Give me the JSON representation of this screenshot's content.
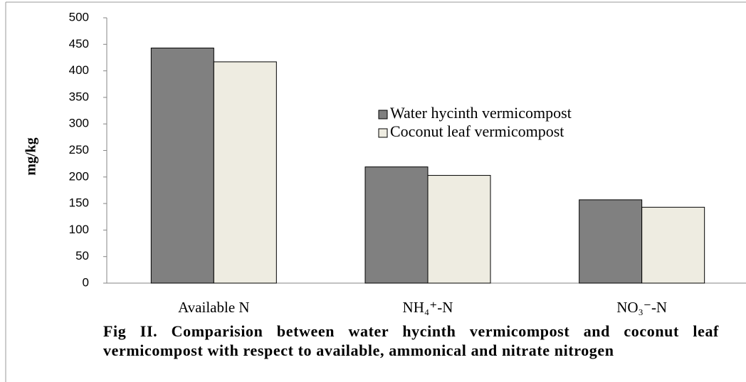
{
  "chart_data": {
    "type": "bar",
    "caption": "Fig II. Comparision between water hycinth vermicompost and coconut leaf vermicompost with respect to available, ammonical and nitrate nitrogen",
    "ylabel": "mg/kg",
    "categories": [
      "Available N",
      "NH₄⁺-N",
      "NO₃⁻-N"
    ],
    "series": [
      {
        "name": "Water hycinth vermicompost",
        "color": "#808080",
        "values": [
          443,
          219,
          157
        ]
      },
      {
        "name": "Coconut leaf vermicompost",
        "color": "#eeece1",
        "values": [
          417,
          203,
          143
        ]
      }
    ],
    "ylim": [
      0,
      500
    ],
    "yticks": [
      0,
      50,
      100,
      150,
      200,
      250,
      300,
      350,
      400,
      450,
      500
    ],
    "grid": false,
    "legend": "upper right"
  }
}
